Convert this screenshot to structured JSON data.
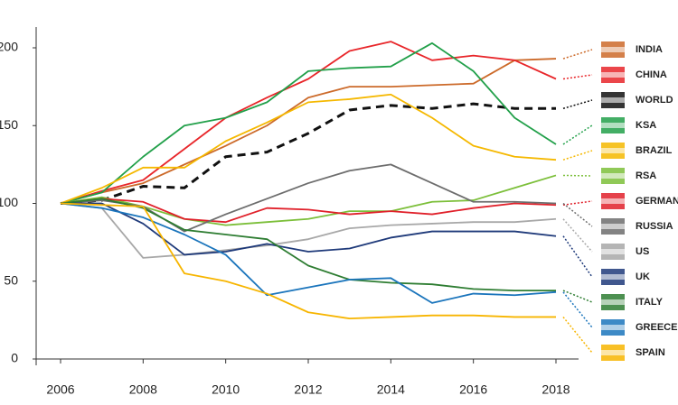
{
  "chart_data": {
    "type": "line",
    "x": [
      2006,
      2007,
      2008,
      2009,
      2010,
      2011,
      2012,
      2013,
      2014,
      2015,
      2016,
      2017,
      2018
    ],
    "xlim": [
      2006,
      2018
    ],
    "xticks": [
      2006,
      2008,
      2010,
      2012,
      2014,
      2016,
      2018
    ],
    "ylim": [
      0,
      200
    ],
    "yticks": [
      0,
      50,
      100,
      150,
      200
    ],
    "series": [
      {
        "name": "INDIA",
        "color": "#cc6a2a",
        "values": [
          100,
          107,
          113,
          125,
          137,
          150,
          168,
          175,
          175,
          176,
          177,
          192,
          193
        ]
      },
      {
        "name": "CHINA",
        "color": "#e8262a",
        "values": [
          100,
          108,
          115,
          135,
          155,
          168,
          180,
          198,
          204,
          192,
          195,
          192,
          180
        ]
      },
      {
        "name": "WORLD",
        "color": "#111111",
        "dashed": true,
        "values": [
          100,
          102,
          111,
          110,
          130,
          133,
          145,
          160,
          163,
          161,
          164,
          161,
          161
        ]
      },
      {
        "name": "KSA",
        "color": "#22a04a",
        "values": [
          100,
          107,
          130,
          150,
          155,
          165,
          185,
          187,
          188,
          203,
          185,
          155,
          138
        ]
      },
      {
        "name": "BRAZIL",
        "color": "#f5b800",
        "values": [
          100,
          110,
          123,
          123,
          140,
          152,
          165,
          167,
          170,
          155,
          137,
          130,
          128
        ]
      },
      {
        "name": "RSA",
        "color": "#7cbf3a",
        "values": [
          100,
          104,
          98,
          90,
          86,
          88,
          90,
          95,
          95,
          101,
          102,
          110,
          118
        ]
      },
      {
        "name": "GERMANY",
        "color": "#e0202a",
        "values": [
          100,
          103,
          101,
          90,
          88,
          97,
          96,
          93,
          95,
          93,
          97,
          100,
          99
        ]
      },
      {
        "name": "RUSSIA",
        "color": "#6d6d6d",
        "values": [
          100,
          102,
          98,
          82,
          93,
          103,
          113,
          121,
          125,
          113,
          101,
          101,
          100
        ]
      },
      {
        "name": "US",
        "color": "#a8a8a8",
        "values": [
          100,
          97,
          65,
          67,
          70,
          73,
          77,
          84,
          86,
          87,
          88,
          88,
          90
        ]
      },
      {
        "name": "UK",
        "color": "#1f3a7a",
        "values": [
          100,
          100,
          87,
          67,
          69,
          74,
          69,
          71,
          78,
          82,
          82,
          82,
          79
        ]
      },
      {
        "name": "ITALY",
        "color": "#2e7d32",
        "values": [
          100,
          103,
          97,
          83,
          80,
          77,
          60,
          51,
          49,
          48,
          45,
          44,
          44
        ]
      },
      {
        "name": "GREECE",
        "color": "#1b75bc",
        "values": [
          100,
          97,
          91,
          80,
          67,
          41,
          46,
          51,
          52,
          36,
          42,
          41,
          43
        ]
      },
      {
        "name": "SPAIN",
        "color": "#f7b500",
        "values": [
          100,
          99,
          98,
          55,
          50,
          42,
          30,
          26,
          27,
          28,
          28,
          27,
          27
        ]
      }
    ]
  }
}
